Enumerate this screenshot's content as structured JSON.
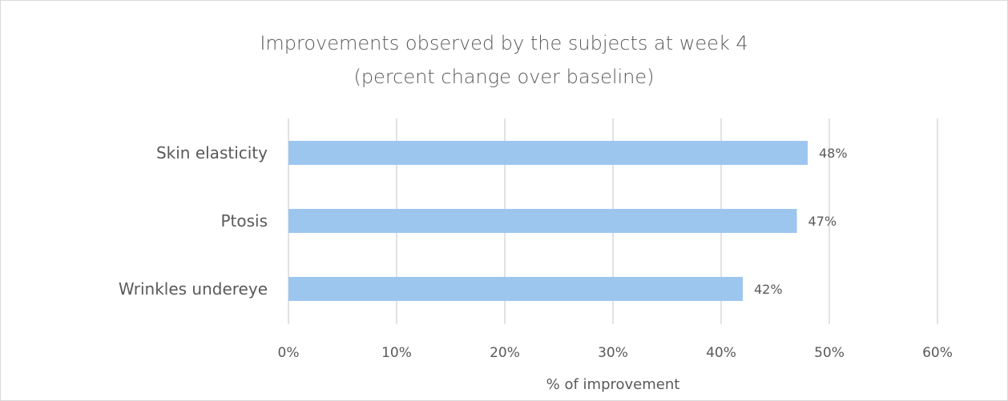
{
  "chart_data": {
    "type": "bar",
    "orientation": "horizontal",
    "title": [
      "Improvements observed by the subjects at week 4",
      "(percent change over baseline)"
    ],
    "xlabel": "% of improvement",
    "ylabel": "",
    "categories": [
      "Skin elasticity",
      "Ptosis",
      "Wrinkles undereye"
    ],
    "values": [
      48,
      47,
      42
    ],
    "data_labels": [
      "48%",
      "47%",
      "42%"
    ],
    "xlim": [
      0,
      60
    ],
    "x_ticks": [
      0,
      10,
      20,
      30,
      40,
      50,
      60
    ],
    "x_tick_labels": [
      "0%",
      "10%",
      "20%",
      "30%",
      "40%",
      "50%",
      "60%"
    ],
    "grid": true,
    "legend": "none",
    "colors": {
      "bar": "#9dc6ef",
      "grid": "#d9d9d9",
      "text": "#595959"
    }
  }
}
